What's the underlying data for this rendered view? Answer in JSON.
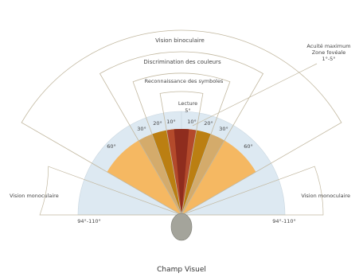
{
  "title": "Champ Visuel",
  "labels": {
    "binocular": "Vision binoculaire",
    "colors": "Discrimination des couleurs",
    "symbols": "Reconnaissance des symboles",
    "reading": "Lecture",
    "reading_angle": "5°",
    "acuity_line1": "Acuité maximum",
    "acuity_line2": "Zone fovéale",
    "acuity_line3": "1°-5°",
    "mono_left": "Vision monoculaire",
    "mono_right": "Vision monoculaire",
    "mono_left_range": "94°-110°",
    "mono_right_range": "94°-110°"
  },
  "angles": {
    "a60_left": "60°",
    "a60_right": "60°",
    "a30_left": "30°",
    "a30_right": "30°",
    "a20_left": "20°",
    "a20_right": "20°",
    "a10_left": "10°",
    "a10_right": "10°"
  },
  "colors": {
    "monocular": "#dde9f2",
    "binocular_60": "#f5b862",
    "sector_30": "#d4ab6b",
    "sector_20": "#bb7f12",
    "sector_10": "#b44a2b",
    "sector_5": "#8f2d1e",
    "eye": "#a4a49b",
    "outline": "#c2b8a0"
  }
}
